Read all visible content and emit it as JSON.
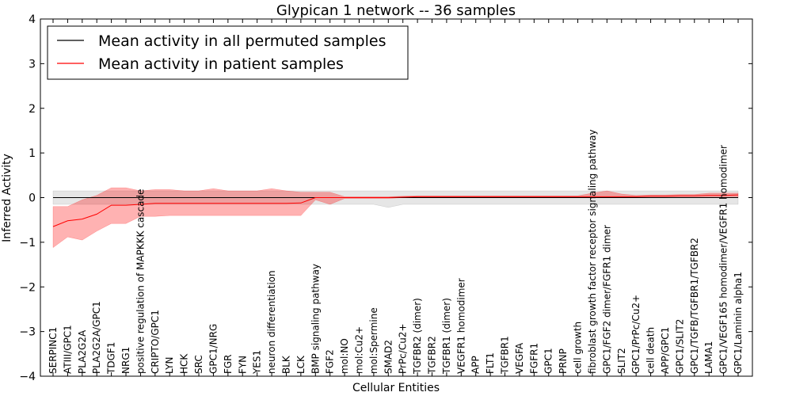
{
  "chart_data": {
    "type": "line",
    "title": "Glypican 1 network -- 36 samples",
    "xlabel": "Cellular Entities",
    "ylabel": "Inferred Activity",
    "ylim": [
      -4,
      4
    ],
    "yticks": [
      -4,
      -3,
      -2,
      -1,
      0,
      1,
      2,
      3,
      4
    ],
    "ytick_labels": [
      "−4",
      "−3",
      "−2",
      "−1",
      "0",
      "1",
      "2",
      "3",
      "4"
    ],
    "legend": {
      "position": "top-left",
      "entries": [
        {
          "label": "Mean activity in all permuted samples",
          "color": "#000000"
        },
        {
          "label": "Mean activity in patient samples",
          "color": "#ff0000"
        }
      ]
    },
    "categories": [
      "SERPINC1",
      "ATIII/GPC1",
      "PLA2G2A",
      "PLA2G2A/GPC1",
      "TDGF1",
      "NRG1",
      "positive regulation of MAPKKK cascade",
      "CRIPTO/GPC1",
      "LYN",
      "HCK",
      "SRC",
      "GPC1/NRG",
      "FGR",
      "FYN",
      "YES1",
      "neuron differentiation",
      "BLK",
      "LCK",
      "BMP signaling pathway",
      "FGF2",
      "mol:NO",
      "mol:Cu2+",
      "mol:Spermine",
      "SMAD2",
      "PrPc/Cu2+",
      "TGFBR2 (dimer)",
      "TGFBR2",
      "TGFBR1 (dimer)",
      "VEGFR1 homodimer",
      "APP",
      "FLT1",
      "TGFBR1",
      "VEGFA",
      "FGFR1",
      "GPC1",
      "PRNP",
      "cell growth",
      "fibroblast growth factor receptor signaling pathway",
      "GPC1/FGF2 dimer/FGFR1 dimer",
      "SLIT2",
      "GPC1/PrPc/Cu2+",
      "cell death",
      "APP/GPC1",
      "GPC1/SLIT2",
      "GPC1/TGFB/TGFBR1/TGFBR2",
      "LAMA1",
      "GPC1/VEGF165 homodimer/VEGFR1 homodimer",
      "GPC1/Laminin alpha1"
    ],
    "series": [
      {
        "name": "Mean activity in all permuted samples",
        "color": "#000000",
        "values": [
          0,
          0,
          0,
          0,
          0,
          0,
          0,
          0,
          0,
          0,
          0,
          0,
          0,
          0,
          0,
          0,
          0,
          0,
          0,
          0,
          0,
          0,
          0,
          0,
          0,
          0,
          0,
          0,
          0,
          0,
          0,
          0,
          0,
          0,
          0,
          0,
          0,
          0,
          0,
          0,
          0,
          0,
          0,
          0,
          0,
          0,
          0,
          0
        ],
        "band_low": [
          -0.15,
          -0.15,
          -0.15,
          -0.15,
          -0.15,
          -0.15,
          -0.15,
          -0.15,
          -0.15,
          -0.15,
          -0.15,
          -0.15,
          -0.15,
          -0.15,
          -0.15,
          -0.15,
          -0.15,
          -0.15,
          -0.15,
          -0.15,
          -0.15,
          -0.15,
          -0.15,
          -0.22,
          -0.15,
          -0.15,
          -0.15,
          -0.15,
          -0.15,
          -0.15,
          -0.15,
          -0.15,
          -0.15,
          -0.15,
          -0.15,
          -0.15,
          -0.15,
          -0.15,
          -0.15,
          -0.15,
          -0.15,
          -0.15,
          -0.15,
          -0.15,
          -0.15,
          -0.15,
          -0.15,
          -0.15
        ],
        "band_high": [
          0.15,
          0.15,
          0.15,
          0.15,
          0.15,
          0.15,
          0.15,
          0.15,
          0.15,
          0.15,
          0.15,
          0.15,
          0.15,
          0.15,
          0.15,
          0.15,
          0.15,
          0.15,
          0.15,
          0.15,
          0.15,
          0.15,
          0.15,
          0.15,
          0.15,
          0.15,
          0.15,
          0.15,
          0.15,
          0.15,
          0.15,
          0.15,
          0.15,
          0.15,
          0.15,
          0.15,
          0.15,
          0.15,
          0.15,
          0.15,
          0.15,
          0.15,
          0.15,
          0.15,
          0.15,
          0.15,
          0.15,
          0.15
        ]
      },
      {
        "name": "Mean activity in patient samples",
        "color": "#ff0000",
        "values": [
          -0.65,
          -0.52,
          -0.48,
          -0.37,
          -0.17,
          -0.17,
          -0.15,
          -0.13,
          -0.13,
          -0.13,
          -0.13,
          -0.13,
          -0.13,
          -0.13,
          -0.13,
          -0.13,
          -0.13,
          -0.12,
          0.0,
          0.0,
          0.0,
          0.0,
          0.0,
          0.0,
          0.01,
          0.02,
          0.02,
          0.02,
          0.02,
          0.02,
          0.02,
          0.02,
          0.02,
          0.02,
          0.02,
          0.02,
          0.02,
          0.02,
          0.02,
          0.02,
          0.02,
          0.03,
          0.03,
          0.04,
          0.04,
          0.05,
          0.05,
          0.06
        ],
        "band_low": [
          -1.12,
          -0.88,
          -0.95,
          -0.75,
          -0.58,
          -0.58,
          -0.42,
          -0.42,
          -0.4,
          -0.4,
          -0.4,
          -0.4,
          -0.4,
          -0.4,
          -0.4,
          -0.4,
          -0.4,
          -0.4,
          -0.05,
          -0.15,
          -0.02,
          -0.02,
          -0.02,
          -0.02,
          0.0,
          0.0,
          0.0,
          0.0,
          0.0,
          0.0,
          0.0,
          0.0,
          0.0,
          0.0,
          0.0,
          0.0,
          0.0,
          0.0,
          0.0,
          0.0,
          0.0,
          0.0,
          0.0,
          0.0,
          0.0,
          0.0,
          0.0,
          0.0
        ],
        "band_high": [
          -0.2,
          -0.2,
          -0.05,
          0.05,
          0.22,
          0.22,
          0.15,
          0.18,
          0.18,
          0.15,
          0.15,
          0.2,
          0.15,
          0.15,
          0.15,
          0.2,
          0.15,
          0.12,
          0.12,
          0.12,
          0.02,
          0.02,
          0.02,
          0.02,
          0.03,
          0.04,
          0.04,
          0.04,
          0.04,
          0.04,
          0.04,
          0.04,
          0.04,
          0.04,
          0.04,
          0.04,
          0.04,
          0.1,
          0.15,
          0.08,
          0.05,
          0.06,
          0.06,
          0.07,
          0.07,
          0.1,
          0.1,
          0.1
        ]
      }
    ]
  }
}
